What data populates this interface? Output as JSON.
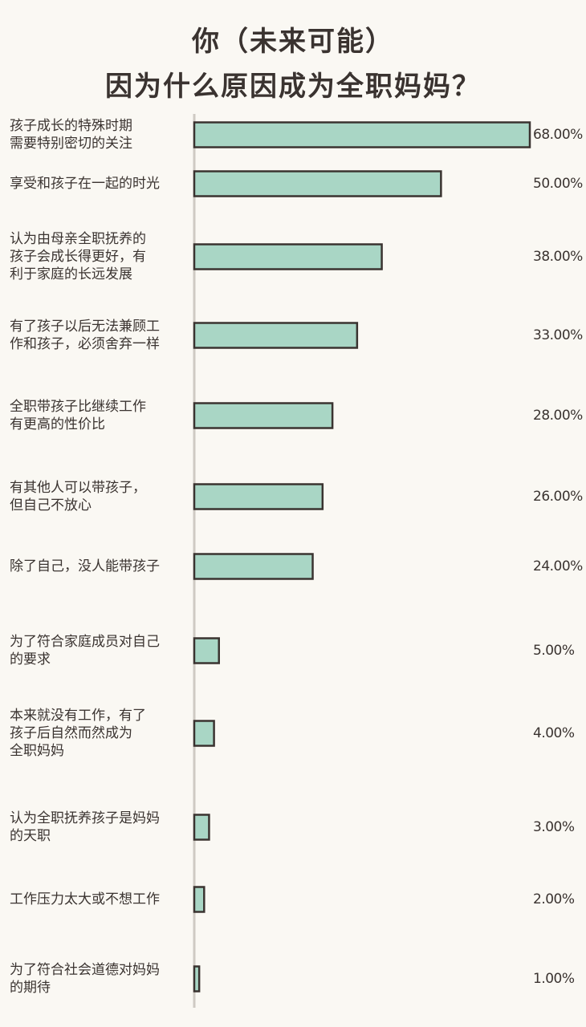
{
  "chart_data": {
    "type": "bar",
    "orientation": "horizontal",
    "title": "你（未来可能）\n因为什么原因成为全职妈妈？",
    "title_lines": [
      "你（未来可能）",
      "因为什么原因成为全职妈妈？"
    ],
    "categories": [
      "孩子成长的特殊时期\n需要特别密切的关注",
      "享受和孩子在一起的时光",
      "认为由母亲全职抚养的\n孩子会成长得更好，有\n利于家庭的长远发展",
      "有了孩子以后无法兼顾工\n作和孩子，必须舍弃一样",
      "全职带孩子比继续工作\n有更高的性价比",
      "有其他人可以带孩子，\n但自己不放心",
      "除了自己，没人能带孩子",
      "为了符合家庭成员对自己\n的要求",
      "本来就没有工作，有了\n孩子后自然而然成为\n全职妈妈",
      "认为全职抚养孩子是妈妈\n的天职",
      "工作压力太大或不想工作",
      "为了符合社会道德对妈妈\n的期待"
    ],
    "values": [
      68,
      50,
      38,
      33,
      28,
      26,
      24,
      5,
      4,
      3,
      2,
      1
    ],
    "value_labels": [
      "68.00%",
      "50.00%",
      "38.00%",
      "33.00%",
      "28.00%",
      "26.00%",
      "24.00%",
      "5.00%",
      "4.00%",
      "3.00%",
      "2.00%",
      "1.00%"
    ],
    "xlim": [
      0,
      68
    ],
    "bar_color": "#a9d6c5",
    "bar_stroke": "#3a3330",
    "axis_color": "#cfcac3",
    "background": "#faf8f3"
  }
}
